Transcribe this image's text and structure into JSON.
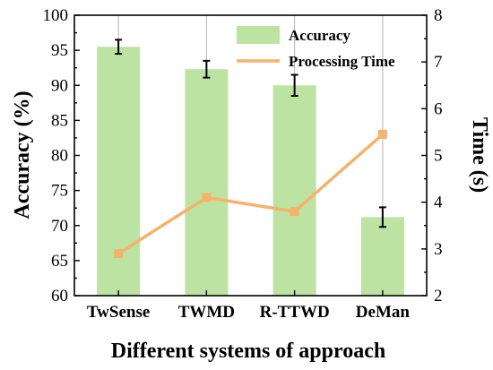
{
  "chart_data": {
    "type": "bar+line",
    "categories": [
      "TwSense",
      "TWMD",
      "R-TTWD",
      "DeMan"
    ],
    "xlabel": "Different systems of approach",
    "ylabel_left": "Accuracy (%)",
    "ylabel_right": "Time (s)",
    "ylim_left": [
      60,
      100
    ],
    "ylim_right": [
      2,
      8
    ],
    "yticks_left": [
      60,
      65,
      70,
      75,
      80,
      85,
      90,
      95,
      100
    ],
    "yticks_right": [
      2,
      3,
      4,
      5,
      6,
      7,
      8
    ],
    "grid": "vertical",
    "legend_position": "top-right",
    "series": [
      {
        "name": "Accuracy",
        "kind": "bar",
        "axis": "left",
        "color": "#bde3a2",
        "values": [
          95.5,
          92.3,
          90.0,
          71.2
        ],
        "errors": [
          1.0,
          1.2,
          1.5,
          1.4
        ]
      },
      {
        "name": "Processing Time",
        "kind": "line",
        "axis": "right",
        "color": "#f6b26b",
        "marker_color": "#f6b26b",
        "values": [
          2.9,
          4.1,
          3.8,
          5.45
        ]
      }
    ]
  }
}
